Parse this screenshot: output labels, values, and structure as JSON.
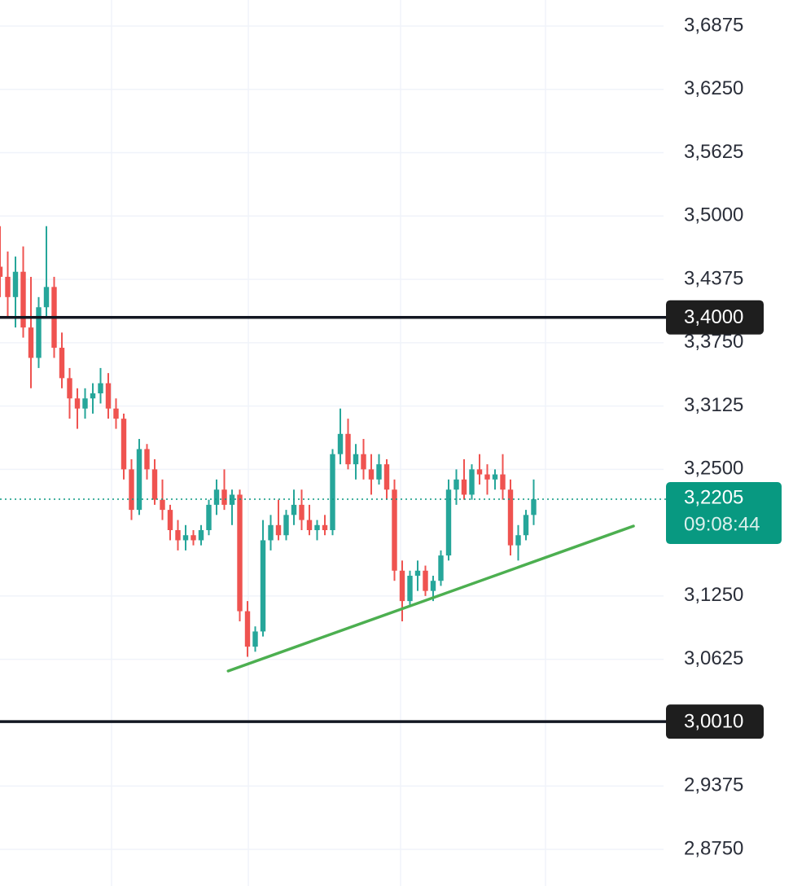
{
  "chart_data": {
    "type": "candlestick",
    "ylim": [
      2.8388,
      3.7132
    ],
    "yticks": [
      {
        "value": 3.6875,
        "label": "3,6875"
      },
      {
        "value": 3.625,
        "label": "3,6250"
      },
      {
        "value": 3.5625,
        "label": "3,5625"
      },
      {
        "value": 3.5,
        "label": "3,5000"
      },
      {
        "value": 3.4375,
        "label": "3,4375"
      },
      {
        "value": 3.375,
        "label": "3,3750"
      },
      {
        "value": 3.3125,
        "label": "3,3125"
      },
      {
        "value": 3.25,
        "label": "3,2500"
      },
      {
        "value": 3.125,
        "label": "3,1250"
      },
      {
        "value": 3.0625,
        "label": "3,0625"
      },
      {
        "value": 2.9375,
        "label": "2,9375"
      },
      {
        "value": 2.875,
        "label": "2,8750"
      }
    ],
    "grid": true,
    "up_color": "#26a69a",
    "down_color": "#ef5350",
    "open": [
      3.45,
      3.44,
      3.42,
      3.445,
      3.39,
      3.36,
      3.41,
      3.43,
      3.37,
      3.34,
      3.32,
      3.31,
      3.32,
      3.325,
      3.335,
      3.31,
      3.3,
      3.25,
      3.21,
      3.27,
      3.25,
      3.22,
      3.21,
      3.19,
      3.18,
      3.185,
      3.18,
      3.19,
      3.215,
      3.23,
      3.215,
      3.225,
      3.11,
      3.075,
      3.09,
      3.18,
      3.195,
      3.185,
      3.205,
      3.215,
      3.2,
      3.19,
      3.195,
      3.19,
      3.265,
      3.285,
      3.255,
      3.265,
      3.25,
      3.24,
      3.255,
      3.23,
      3.15,
      3.12,
      3.145,
      3.15,
      3.13,
      3.14,
      3.165,
      3.23,
      3.24,
      3.225,
      3.25,
      3.245,
      3.24,
      3.245,
      3.23,
      3.175,
      3.185,
      3.205
    ],
    "high": [
      3.49,
      3.465,
      3.46,
      3.47,
      3.44,
      3.42,
      3.49,
      3.44,
      3.385,
      3.35,
      3.33,
      3.33,
      3.335,
      3.35,
      3.345,
      3.32,
      3.305,
      3.26,
      3.28,
      3.275,
      3.26,
      3.24,
      3.215,
      3.2,
      3.195,
      3.19,
      3.195,
      3.22,
      3.24,
      3.25,
      3.23,
      3.23,
      3.12,
      3.095,
      3.2,
      3.205,
      3.22,
      3.21,
      3.23,
      3.23,
      3.215,
      3.2,
      3.205,
      3.27,
      3.31,
      3.3,
      3.275,
      3.28,
      3.265,
      3.265,
      3.26,
      3.24,
      3.16,
      3.15,
      3.16,
      3.155,
      3.145,
      3.17,
      3.24,
      3.25,
      3.26,
      3.255,
      3.265,
      3.255,
      3.25,
      3.265,
      3.24,
      3.195,
      3.21,
      3.24
    ],
    "low": [
      3.42,
      3.4,
      3.39,
      3.38,
      3.33,
      3.35,
      3.4,
      3.36,
      3.33,
      3.3,
      3.29,
      3.3,
      3.305,
      3.315,
      3.3,
      3.29,
      3.24,
      3.2,
      3.205,
      3.24,
      3.215,
      3.2,
      3.18,
      3.17,
      3.17,
      3.175,
      3.175,
      3.185,
      3.205,
      3.21,
      3.195,
      3.1,
      3.065,
      3.07,
      3.085,
      3.17,
      3.18,
      3.18,
      3.195,
      3.19,
      3.185,
      3.18,
      3.185,
      3.185,
      3.255,
      3.25,
      3.24,
      3.24,
      3.225,
      3.235,
      3.22,
      3.14,
      3.1,
      3.115,
      3.13,
      3.125,
      3.12,
      3.135,
      3.16,
      3.215,
      3.22,
      3.22,
      3.235,
      3.225,
      3.23,
      3.22,
      3.165,
      3.16,
      3.18,
      3.195
    ],
    "close": [
      3.44,
      3.42,
      3.445,
      3.39,
      3.36,
      3.41,
      3.43,
      3.37,
      3.34,
      3.32,
      3.31,
      3.32,
      3.325,
      3.335,
      3.31,
      3.3,
      3.25,
      3.21,
      3.27,
      3.25,
      3.22,
      3.21,
      3.19,
      3.18,
      3.185,
      3.18,
      3.19,
      3.215,
      3.23,
      3.215,
      3.225,
      3.11,
      3.075,
      3.09,
      3.18,
      3.195,
      3.185,
      3.205,
      3.215,
      3.2,
      3.19,
      3.195,
      3.19,
      3.265,
      3.285,
      3.255,
      3.265,
      3.25,
      3.24,
      3.255,
      3.23,
      3.15,
      3.12,
      3.145,
      3.15,
      3.13,
      3.14,
      3.165,
      3.23,
      3.24,
      3.225,
      3.25,
      3.245,
      3.24,
      3.245,
      3.23,
      3.175,
      3.185,
      3.205,
      3.2205
    ],
    "hlines": [
      {
        "value": 3.4,
        "label": "3,4000"
      },
      {
        "value": 3.001,
        "label": "3,0010"
      }
    ],
    "last_price": {
      "value": 3.2205,
      "label": "3,2205",
      "countdown": "09:08:44",
      "color": "#089981"
    },
    "trendline": {
      "x": [
        29.5,
        81.9
      ],
      "y": [
        3.051,
        3.194
      ],
      "color": "#4caf50"
    }
  }
}
